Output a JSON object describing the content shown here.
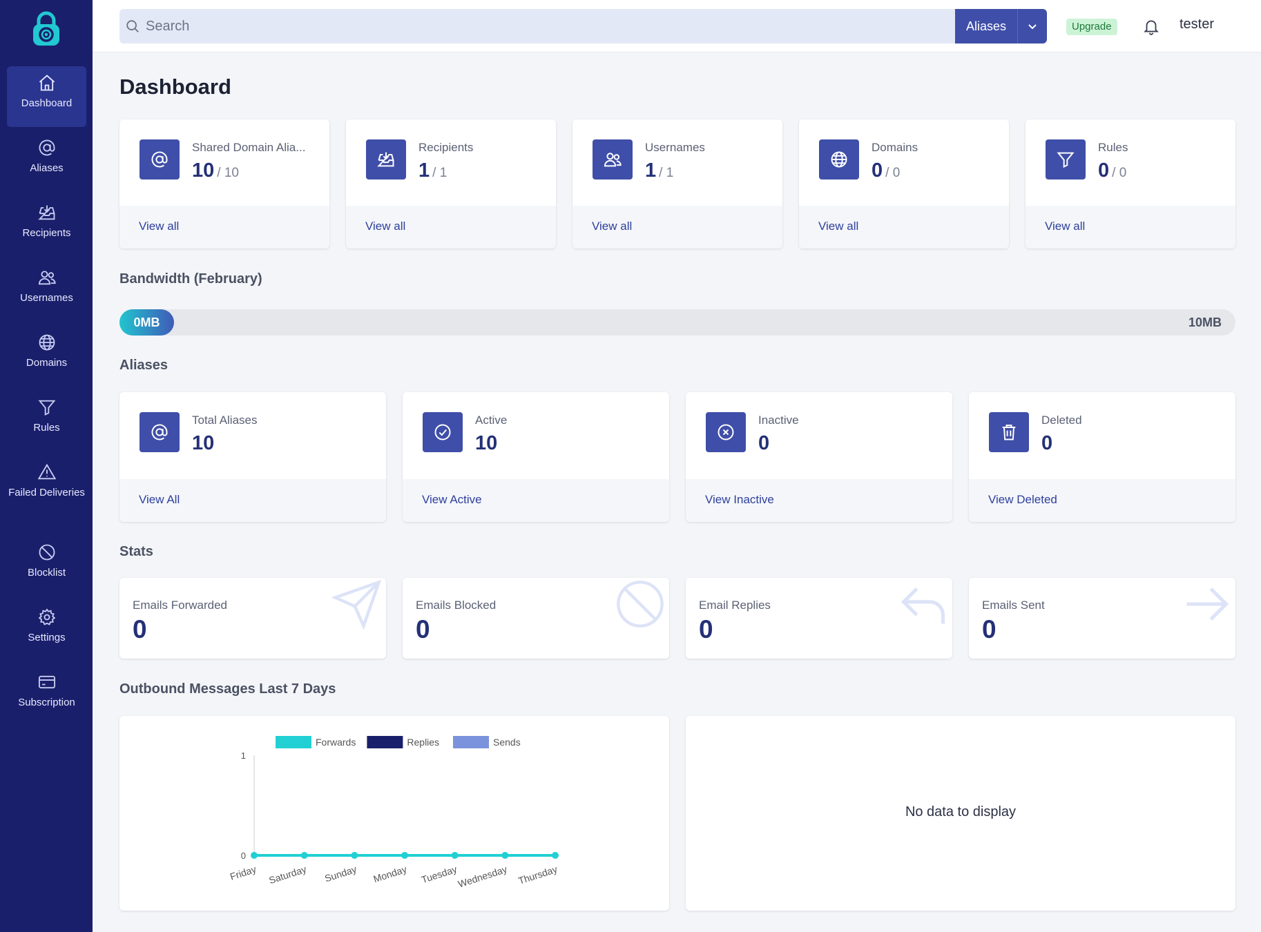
{
  "sidebar": {
    "items": [
      {
        "label": "Dashboard",
        "icon": "home-icon"
      },
      {
        "label": "Aliases",
        "icon": "at-icon"
      },
      {
        "label": "Recipients",
        "icon": "inbox-icon"
      },
      {
        "label": "Usernames",
        "icon": "users-icon"
      },
      {
        "label": "Domains",
        "icon": "globe-icon"
      },
      {
        "label": "Rules",
        "icon": "filter-icon"
      },
      {
        "label": "Failed Deliveries",
        "icon": "warning-icon"
      },
      {
        "label": "Blocklist",
        "icon": "ban-icon"
      },
      {
        "label": "Settings",
        "icon": "gear-icon"
      },
      {
        "label": "Subscription",
        "icon": "credit-card-icon"
      }
    ]
  },
  "topbar": {
    "search_placeholder": "Search",
    "search_scope": "Aliases",
    "upgrade_label": "Upgrade",
    "username": "tester"
  },
  "page_title": "Dashboard",
  "summary_cards": [
    {
      "label": "Shared Domain Alia...",
      "value": "10",
      "of": "/ 10",
      "link": "View all",
      "icon": "at-icon"
    },
    {
      "label": "Recipients",
      "value": "1",
      "of": "/ 1",
      "link": "View all",
      "icon": "inbox-icon"
    },
    {
      "label": "Usernames",
      "value": "1",
      "of": "/ 1",
      "link": "View all",
      "icon": "users-icon"
    },
    {
      "label": "Domains",
      "value": "0",
      "of": "/ 0",
      "link": "View all",
      "icon": "globe-icon"
    },
    {
      "label": "Rules",
      "value": "0",
      "of": "/ 0",
      "link": "View all",
      "icon": "filter-icon"
    }
  ],
  "bandwidth": {
    "title": "Bandwidth (February)",
    "used": "0MB",
    "max": "10MB"
  },
  "aliases_section": {
    "title": "Aliases",
    "cards": [
      {
        "label": "Total Aliases",
        "value": "10",
        "link": "View All",
        "icon": "at-icon"
      },
      {
        "label": "Active",
        "value": "10",
        "link": "View Active",
        "icon": "check-circle-icon"
      },
      {
        "label": "Inactive",
        "value": "0",
        "link": "View Inactive",
        "icon": "x-circle-icon"
      },
      {
        "label": "Deleted",
        "value": "0",
        "link": "View Deleted",
        "icon": "trash-icon"
      }
    ]
  },
  "stats_section": {
    "title": "Stats",
    "cards": [
      {
        "label": "Emails Forwarded",
        "value": "0",
        "icon": "send-icon"
      },
      {
        "label": "Emails Blocked",
        "value": "0",
        "icon": "ban-icon"
      },
      {
        "label": "Email Replies",
        "value": "0",
        "icon": "reply-icon"
      },
      {
        "label": "Emails Sent",
        "value": "0",
        "icon": "arrow-right-icon"
      }
    ]
  },
  "outbound": {
    "title": "Outbound Messages Last 7 Days",
    "no_data": "No data to display"
  },
  "chart_data": {
    "type": "line",
    "categories": [
      "Friday",
      "Saturday",
      "Sunday",
      "Monday",
      "Tuesday",
      "Wednesday",
      "Thursday"
    ],
    "series": [
      {
        "name": "Forwards",
        "color": "#22d0d4",
        "values": [
          0,
          0,
          0,
          0,
          0,
          0,
          0
        ]
      },
      {
        "name": "Replies",
        "color": "#1a1f6b",
        "values": [
          0,
          0,
          0,
          0,
          0,
          0,
          0
        ]
      },
      {
        "name": "Sends",
        "color": "#7b93dc",
        "values": [
          0,
          0,
          0,
          0,
          0,
          0,
          0
        ]
      }
    ],
    "ylim": [
      0,
      1
    ],
    "yticks": [
      "0",
      "1"
    ],
    "legend": "top"
  }
}
